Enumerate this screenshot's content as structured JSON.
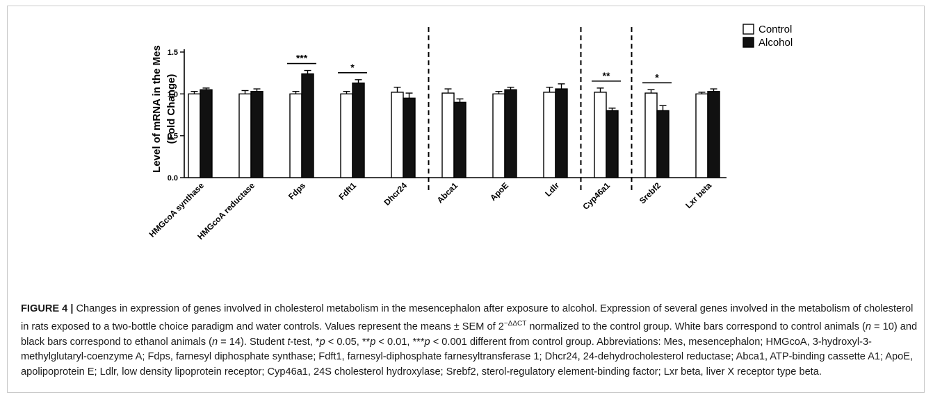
{
  "figure": {
    "label": "FIGURE 4 |",
    "caption_html": " Changes in expression of genes involved in cholesterol metabolism in the mesencephalon after exposure to alcohol. Expression of several genes involved in the metabolism of cholesterol in rats exposed to a two-bottle choice paradigm and water controls. Values represent the means ± SEM of 2<sup style=\"font-size:10px\">−ΔΔCT</sup> normalized to the control group. White bars correspond to control animals (<i>n</i> = 10) and black bars correspond to ethanol animals (<i>n</i> = 14). Student <i>t</i>-test, *<i>p</i> &lt; 0.05, **<i>p</i> &lt; 0.01, ***<i>p</i> &lt; 0.001 different from control group. Abbreviations: Mes, mesencephalon; HMGcoA, 3-hydroxyl-3-methylglutaryl-coenzyme A; Fdps, farnesyl diphosphate synthase; Fdft1, farnesyl-diphosphate farnesyltransferase 1; Dhcr24, 24-dehydrocholesterol reductase; Abca1, ATP-binding cassette A1; ApoE, apolipoprotein E; Ldlr, low density lipoprotein receptor; Cyp46a1, 24S cholesterol hydroxylase; Srebf2, sterol-regulatory element-binding factor; Lxr beta, liver X receptor type beta."
  },
  "chart_data": {
    "type": "bar",
    "title": "",
    "xlabel": "",
    "ylabel": "Level of mRNA in the Mes\n(Fold Change)",
    "ylim": [
      0,
      1.5
    ],
    "yticks": [
      "0.0",
      "0.5",
      "1.0",
      "1.5"
    ],
    "categories": [
      "HMGcoA synthase",
      "HMGcoA reductase",
      "Fdps",
      "Fdft1",
      "Dhcr24",
      "Abca1",
      "ApoE",
      "Ldlr",
      "Cyp46a1",
      "Srebf2",
      "Lxr beta"
    ],
    "series": [
      {
        "name": "Control",
        "color": "#ffffff",
        "values": [
          1.0,
          1.0,
          1.0,
          1.0,
          1.02,
          1.01,
          1.0,
          1.02,
          1.02,
          1.01,
          1.0
        ],
        "errors": [
          0.03,
          0.04,
          0.03,
          0.03,
          0.06,
          0.05,
          0.03,
          0.06,
          0.05,
          0.04,
          0.02
        ]
      },
      {
        "name": "Alcohol",
        "color": "#111111",
        "values": [
          1.05,
          1.03,
          1.24,
          1.13,
          0.95,
          0.9,
          1.05,
          1.06,
          0.8,
          0.8,
          1.03
        ],
        "errors": [
          0.02,
          0.03,
          0.04,
          0.04,
          0.06,
          0.04,
          0.03,
          0.06,
          0.03,
          0.06,
          0.03
        ]
      }
    ],
    "significance": [
      {
        "category_index": 2,
        "label": "***"
      },
      {
        "category_index": 3,
        "label": "*"
      },
      {
        "category_index": 8,
        "label": "**"
      },
      {
        "category_index": 9,
        "label": "*"
      }
    ],
    "dividers_after": [
      4,
      7,
      8
    ],
    "legend_position": "top-right",
    "grid": false
  }
}
